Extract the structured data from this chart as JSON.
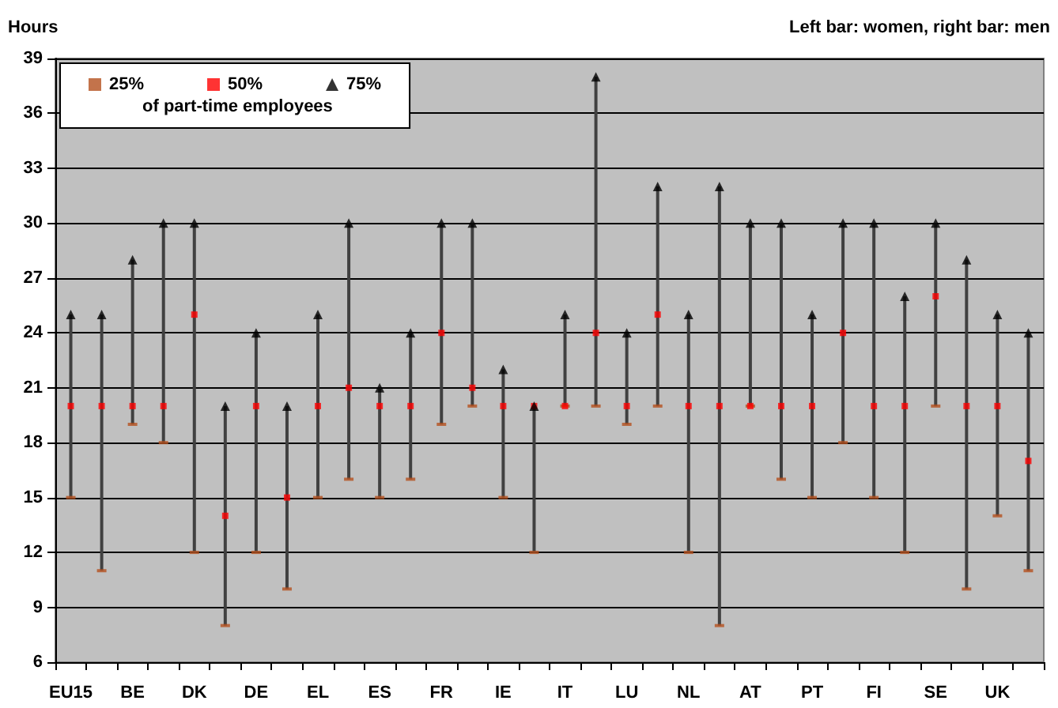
{
  "chart_data": {
    "type": "scatter",
    "ylabel": "Hours",
    "annotations": [
      "Left bar: women, right bar: men"
    ],
    "legend_title": "of part-time employees",
    "categories": [
      "EU15",
      null,
      "BE",
      null,
      "DK",
      null,
      "DE",
      null,
      "EL",
      null,
      "ES",
      null,
      "FR",
      null,
      "IE",
      null,
      "IT",
      null,
      "LU",
      null,
      "NL",
      null,
      "AT",
      null,
      "PT",
      null,
      "FI",
      null,
      "SE",
      null,
      "UK",
      null
    ],
    "series": [
      {
        "type": "bar",
        "color": "#404040",
        "base": [
          15,
          11,
          19,
          18,
          12,
          8,
          12,
          10,
          15,
          16,
          15,
          16,
          19,
          20,
          15,
          12,
          20,
          20,
          19,
          20,
          12,
          8,
          20,
          16,
          15,
          18,
          15,
          12,
          20,
          10,
          14,
          11
        ],
        "values": [
          10,
          14,
          9,
          12,
          18,
          12,
          12,
          10,
          10,
          14,
          6,
          8,
          11,
          10,
          7,
          8,
          5,
          18,
          5,
          12,
          13,
          24,
          10,
          14,
          10,
          12,
          15,
          14,
          10,
          18,
          11,
          13
        ]
      },
      {
        "name": "25%",
        "color": "#b4501e",
        "marker": "square",
        "values": [
          15,
          11,
          19,
          18,
          12,
          8,
          12,
          10,
          15,
          16,
          15,
          16,
          19,
          20,
          15,
          12,
          20,
          20,
          19,
          20,
          12,
          8,
          20,
          16,
          15,
          18,
          15,
          12,
          20,
          10,
          14,
          11
        ]
      },
      {
        "name": "50%",
        "color": "#ff0000",
        "marker": "square",
        "values": [
          20,
          20,
          20,
          20,
          25,
          14,
          20,
          15,
          20,
          21,
          20,
          20,
          24,
          21,
          20,
          20,
          20,
          24,
          20,
          25,
          20,
          20,
          20,
          20,
          20,
          24,
          20,
          20,
          26,
          20,
          20,
          17
        ]
      },
      {
        "name": "75%",
        "color": "#000000",
        "marker": "triangle",
        "values": [
          25,
          25,
          28,
          30,
          30,
          20,
          24,
          20,
          25,
          30,
          21,
          24,
          30,
          30,
          22,
          20,
          25,
          38,
          24,
          32,
          25,
          32,
          30,
          30,
          25,
          30,
          30,
          26,
          30,
          28,
          25,
          24
        ]
      }
    ],
    "ylim": [
      6,
      39
    ],
    "yticks": [
      6,
      9,
      12,
      15,
      18,
      21,
      24,
      27,
      30,
      33,
      36,
      39
    ],
    "grid": "y",
    "legend": "top left"
  }
}
